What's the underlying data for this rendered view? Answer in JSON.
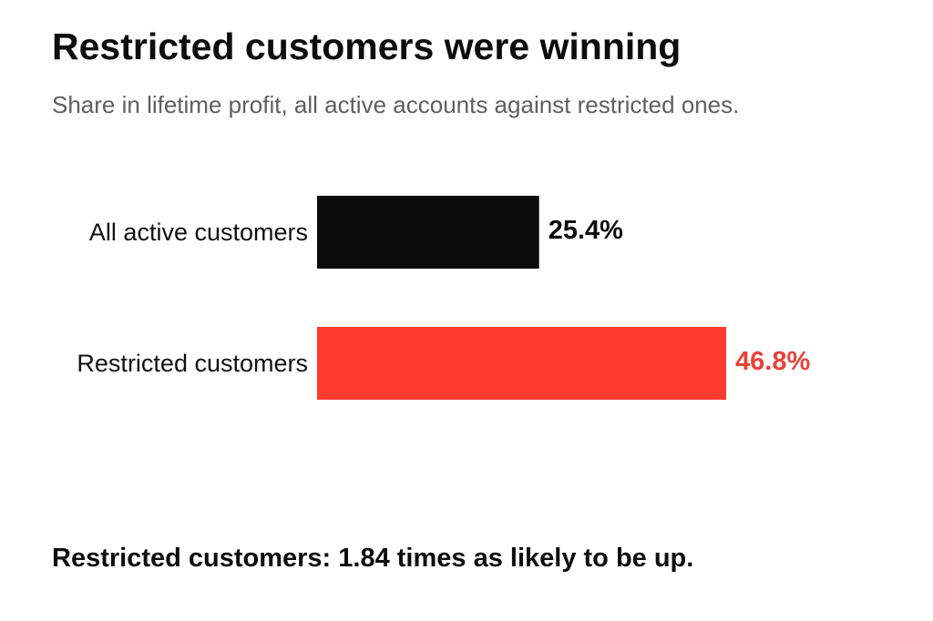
{
  "chart_data": {
    "type": "bar",
    "orientation": "horizontal",
    "title": "Restricted customers were winning",
    "subtitle": "Share in lifetime profit, all active accounts against restricted ones.",
    "categories": [
      "All active customers",
      "Restricted customers"
    ],
    "values": [
      25.4,
      46.8
    ],
    "value_labels": [
      "25.4%",
      "46.8%"
    ],
    "bar_colors": [
      "#0b0b0b",
      "#ff3b30"
    ],
    "label_colors": [
      "#0d0d0d",
      "#e8433a"
    ],
    "unit": "%",
    "xlim": [
      0,
      46.8
    ],
    "grid": false,
    "legend": "none"
  },
  "footnote": "Restricted customers: 1.84 times as likely to be up."
}
